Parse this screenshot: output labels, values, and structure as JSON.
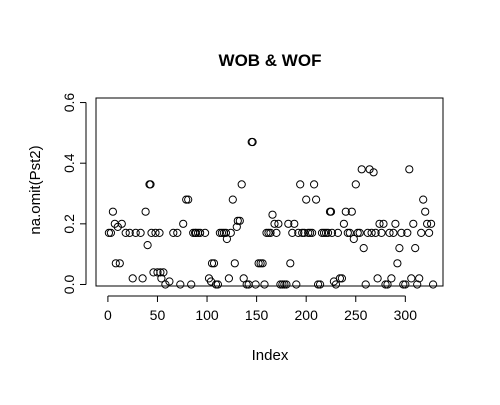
{
  "chart_data": {
    "type": "scatter",
    "title": "WOB & WOF",
    "xlabel": "Index",
    "ylabel": "na.omit(Pst2)",
    "x_ticks": [
      0,
      50,
      100,
      150,
      200,
      250,
      300
    ],
    "y_ticks": [
      0.0,
      0.2,
      0.4,
      0.6
    ],
    "x_tick_labels": [
      "0",
      "50",
      "100",
      "150",
      "200",
      "250",
      "300"
    ],
    "y_tick_labels": [
      "0.0",
      "0.2",
      "0.4",
      "0.6"
    ],
    "xlim": [
      -12,
      338
    ],
    "ylim": [
      -0.005,
      0.615
    ],
    "grid": false,
    "marker": "open-circle",
    "marker_color": "#000000",
    "points": [
      [
        1,
        0.17
      ],
      [
        3,
        0.17
      ],
      [
        5,
        0.24
      ],
      [
        7,
        0.2
      ],
      [
        8,
        0.07
      ],
      [
        10,
        0.19
      ],
      [
        12,
        0.07
      ],
      [
        14,
        0.2
      ],
      [
        18,
        0.17
      ],
      [
        22,
        0.17
      ],
      [
        25,
        0.02
      ],
      [
        28,
        0.17
      ],
      [
        33,
        0.17
      ],
      [
        35,
        0.02
      ],
      [
        38,
        0.24
      ],
      [
        40,
        0.13
      ],
      [
        42,
        0.33
      ],
      [
        43,
        0.33
      ],
      [
        44,
        0.17
      ],
      [
        46,
        0.04
      ],
      [
        48,
        0.17
      ],
      [
        50,
        0.04
      ],
      [
        52,
        0.17
      ],
      [
        53,
        0.04
      ],
      [
        54,
        0.02
      ],
      [
        56,
        0.04
      ],
      [
        58,
        0.0
      ],
      [
        62,
        0.01
      ],
      [
        66,
        0.17
      ],
      [
        70,
        0.17
      ],
      [
        73,
        0.0
      ],
      [
        76,
        0.2
      ],
      [
        79,
        0.28
      ],
      [
        81,
        0.28
      ],
      [
        84,
        0.0
      ],
      [
        86,
        0.17
      ],
      [
        88,
        0.17
      ],
      [
        89,
        0.17
      ],
      [
        91,
        0.17
      ],
      [
        93,
        0.17
      ],
      [
        98,
        0.17
      ],
      [
        102,
        0.02
      ],
      [
        104,
        0.01
      ],
      [
        105,
        0.07
      ],
      [
        107,
        0.07
      ],
      [
        109,
        0.0
      ],
      [
        111,
        0.0
      ],
      [
        113,
        0.17
      ],
      [
        115,
        0.17
      ],
      [
        117,
        0.17
      ],
      [
        119,
        0.17
      ],
      [
        120,
        0.15
      ],
      [
        122,
        0.02
      ],
      [
        124,
        0.17
      ],
      [
        126,
        0.28
      ],
      [
        128,
        0.07
      ],
      [
        130,
        0.19
      ],
      [
        131,
        0.21
      ],
      [
        133,
        0.21
      ],
      [
        135,
        0.33
      ],
      [
        137,
        0.02
      ],
      [
        140,
        0.0
      ],
      [
        142,
        0.0
      ],
      [
        145,
        0.47
      ],
      [
        146,
        0.47
      ],
      [
        149,
        0.0
      ],
      [
        152,
        0.07
      ],
      [
        154,
        0.07
      ],
      [
        156,
        0.07
      ],
      [
        158,
        0.0
      ],
      [
        160,
        0.17
      ],
      [
        162,
        0.17
      ],
      [
        164,
        0.17
      ],
      [
        166,
        0.23
      ],
      [
        168,
        0.2
      ],
      [
        170,
        0.17
      ],
      [
        172,
        0.2
      ],
      [
        174,
        0.0
      ],
      [
        176,
        0.0
      ],
      [
        178,
        0.0
      ],
      [
        180,
        0.0
      ],
      [
        182,
        0.2
      ],
      [
        184,
        0.07
      ],
      [
        186,
        0.17
      ],
      [
        188,
        0.2
      ],
      [
        190,
        0.0
      ],
      [
        192,
        0.17
      ],
      [
        194,
        0.33
      ],
      [
        196,
        0.17
      ],
      [
        198,
        0.17
      ],
      [
        200,
        0.28
      ],
      [
        202,
        0.17
      ],
      [
        204,
        0.17
      ],
      [
        206,
        0.17
      ],
      [
        208,
        0.33
      ],
      [
        210,
        0.28
      ],
      [
        212,
        0.0
      ],
      [
        214,
        0.0
      ],
      [
        216,
        0.17
      ],
      [
        218,
        0.17
      ],
      [
        220,
        0.17
      ],
      [
        222,
        0.17
      ],
      [
        224,
        0.24
      ],
      [
        225,
        0.24
      ],
      [
        226,
        0.17
      ],
      [
        228,
        0.01
      ],
      [
        230,
        0.0
      ],
      [
        232,
        0.17
      ],
      [
        234,
        0.02
      ],
      [
        236,
        0.02
      ],
      [
        238,
        0.2
      ],
      [
        240,
        0.24
      ],
      [
        242,
        0.17
      ],
      [
        244,
        0.17
      ],
      [
        246,
        0.24
      ],
      [
        248,
        0.15
      ],
      [
        250,
        0.33
      ],
      [
        252,
        0.17
      ],
      [
        254,
        0.17
      ],
      [
        256,
        0.38
      ],
      [
        258,
        0.12
      ],
      [
        260,
        0.0
      ],
      [
        262,
        0.17
      ],
      [
        264,
        0.38
      ],
      [
        266,
        0.17
      ],
      [
        268,
        0.37
      ],
      [
        270,
        0.17
      ],
      [
        272,
        0.02
      ],
      [
        274,
        0.2
      ],
      [
        276,
        0.17
      ],
      [
        278,
        0.2
      ],
      [
        280,
        0.0
      ],
      [
        282,
        0.0
      ],
      [
        284,
        0.17
      ],
      [
        286,
        0.02
      ],
      [
        288,
        0.17
      ],
      [
        290,
        0.2
      ],
      [
        292,
        0.07
      ],
      [
        294,
        0.12
      ],
      [
        296,
        0.17
      ],
      [
        298,
        0.0
      ],
      [
        300,
        0.0
      ],
      [
        302,
        0.17
      ],
      [
        304,
        0.38
      ],
      [
        306,
        0.02
      ],
      [
        308,
        0.2
      ],
      [
        310,
        0.12
      ],
      [
        312,
        0.0
      ],
      [
        314,
        0.02
      ],
      [
        316,
        0.17
      ],
      [
        318,
        0.28
      ],
      [
        320,
        0.24
      ],
      [
        322,
        0.2
      ],
      [
        324,
        0.17
      ],
      [
        326,
        0.2
      ],
      [
        328,
        0.0
      ]
    ]
  }
}
